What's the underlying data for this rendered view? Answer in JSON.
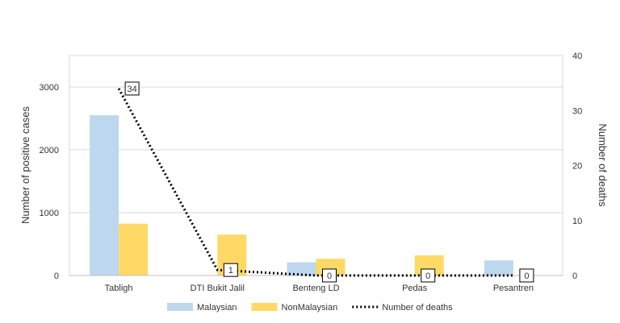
{
  "chart_data": {
    "type": "bar",
    "categories": [
      "Tabligh",
      "DTI Bukit Jalil",
      "Benteng LD",
      "Pedas",
      "Pesantren"
    ],
    "series": [
      {
        "name": "Malaysian",
        "kind": "bar",
        "axis": "left",
        "values": [
          2550,
          0,
          210,
          0,
          240
        ]
      },
      {
        "name": "NonMalaysian",
        "kind": "bar",
        "axis": "left",
        "values": [
          825,
          650,
          265,
          320,
          0
        ]
      },
      {
        "name": "Number of deaths",
        "kind": "line",
        "axis": "right",
        "style": "dotted",
        "values": [
          34,
          1,
          0,
          0,
          0
        ],
        "labels": [
          "34",
          "1",
          "0",
          "0",
          "0"
        ]
      }
    ],
    "ylabel": "Number of positive cases",
    "y2label": "Number of deaths",
    "ylim": [
      0,
      3500
    ],
    "y2lim": [
      0,
      40
    ],
    "yticks": [
      0,
      1000,
      2000,
      3000
    ],
    "y2ticks": [
      0,
      10,
      20,
      30,
      40
    ],
    "grid": true,
    "legend_position": "bottom",
    "colors": {
      "Malaysian": "#bdd7ee",
      "NonMalaysian": "#ffd966",
      "Number of deaths": "#000000"
    }
  }
}
